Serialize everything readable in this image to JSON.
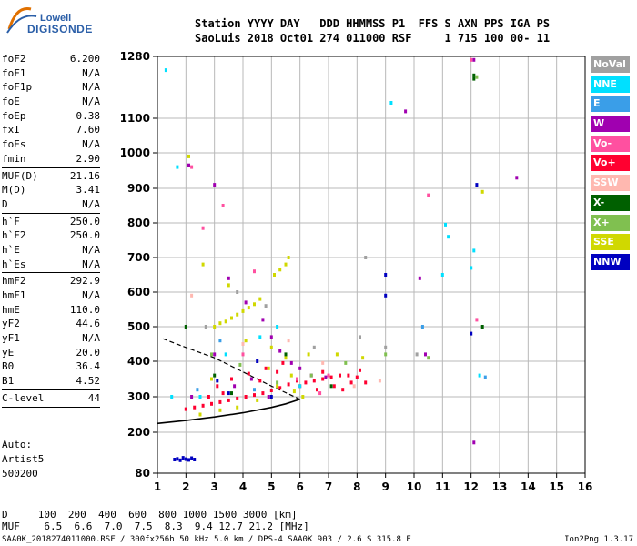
{
  "logo": {
    "line1": "Lowell",
    "line2": "DIGISONDE"
  },
  "header": {
    "line1": "Station YYYY DAY   DDD HHMMSS P1  FFS S AXN PPS IGA PS",
    "line2": "SaoLuis 2018 Oct01 274 011000 RSF     1 715 100 00- 11"
  },
  "params": [
    {
      "name": "foF2",
      "value": "6.200"
    },
    {
      "name": "foF1",
      "value": "N/A"
    },
    {
      "name": "foF1p",
      "value": "N/A"
    },
    {
      "name": "foE",
      "value": "N/A"
    },
    {
      "name": "foEp",
      "value": "0.38"
    },
    {
      "name": "fxI",
      "value": "7.60"
    },
    {
      "name": "foEs",
      "value": "N/A"
    },
    {
      "name": "fmin",
      "value": "2.90",
      "sep_after": true
    },
    {
      "name": "MUF(D)",
      "value": "21.16"
    },
    {
      "name": "M(D)",
      "value": "3.41"
    },
    {
      "name": "D",
      "value": "N/A",
      "sep_after": true
    },
    {
      "name": "h`F",
      "value": "250.0"
    },
    {
      "name": "h`F2",
      "value": "250.0"
    },
    {
      "name": "h`E",
      "value": "N/A"
    },
    {
      "name": "h`Es",
      "value": "N/A",
      "sep_after": true
    },
    {
      "name": "hmF2",
      "value": "292.9"
    },
    {
      "name": "hmF1",
      "value": "N/A"
    },
    {
      "name": "hmE",
      "value": "110.0"
    },
    {
      "name": "yF2",
      "value": "44.6"
    },
    {
      "name": "yF1",
      "value": "N/A"
    },
    {
      "name": "yE",
      "value": "20.0"
    },
    {
      "name": "B0",
      "value": "36.4"
    },
    {
      "name": "B1",
      "value": "4.52",
      "sep_after": true
    },
    {
      "name": "C-level",
      "value": "44",
      "sep_after": true
    }
  ],
  "auto": {
    "line1": "Auto:",
    "line2": "Artist5",
    "line3": "500200"
  },
  "legend": [
    {
      "label": "NoVal",
      "bg": "#a0a0a0",
      "fg": "#ffffff"
    },
    {
      "label": "NNE",
      "bg": "#00e0ff",
      "fg": "#ffffff"
    },
    {
      "label": "E",
      "bg": "#3a9ee8",
      "fg": "#ffffff"
    },
    {
      "label": "W",
      "bg": "#a000b0",
      "fg": "#ffffff"
    },
    {
      "label": "Vo-",
      "bg": "#ff50a0",
      "fg": "#ffffff"
    },
    {
      "label": "Vo+",
      "bg": "#ff0030",
      "fg": "#ffffff"
    },
    {
      "label": "SSW",
      "bg": "#ffb8b0",
      "fg": "#ffffff"
    },
    {
      "label": "X-",
      "bg": "#006000",
      "fg": "#ffffff"
    },
    {
      "label": "X+",
      "bg": "#80c050",
      "fg": "#ffffff"
    },
    {
      "label": "SSE",
      "bg": "#d0d800",
      "fg": "#ffffff"
    },
    {
      "label": "NNW",
      "bg": "#0000c0",
      "fg": "#ffffff"
    }
  ],
  "footer": {
    "freq_d": "D     100  200  400  600  800 1000 1500 3000 [km]",
    "freq_m": "MUF    6.5  6.6  7.0  7.5  8.3  9.4 12.7 21.2 [MHz]",
    "source": "SAA0K_2018274011000.RSF / 300fx256h 50 kHz 5.0 km / DPS-4 SAA0K 903 / 2.6 S 315.8 E",
    "version": "Ion2Png 1.3.17"
  },
  "chart_data": {
    "type": "scatter",
    "title": "",
    "xlabel": "",
    "ylabel": "",
    "xlim": [
      1,
      16
    ],
    "ylim": [
      80,
      1280
    ],
    "x_ticks": [
      1,
      2,
      3,
      4,
      5,
      6,
      7,
      8,
      9,
      10,
      11,
      12,
      13,
      14,
      15,
      16
    ],
    "y_ticks": [
      80,
      200,
      300,
      400,
      500,
      600,
      700,
      800,
      900,
      1000,
      1100,
      1280
    ],
    "grid": true,
    "legend_position": "right",
    "series": [
      {
        "name": "Vo+",
        "color": "#ff0030",
        "points": [
          [
            2.0,
            265
          ],
          [
            2.3,
            270
          ],
          [
            2.6,
            275
          ],
          [
            2.9,
            280
          ],
          [
            3.2,
            285
          ],
          [
            3.5,
            290
          ],
          [
            3.8,
            295
          ],
          [
            4.1,
            300
          ],
          [
            4.4,
            305
          ],
          [
            4.7,
            310
          ],
          [
            5.0,
            318
          ],
          [
            5.3,
            325
          ],
          [
            5.6,
            335
          ],
          [
            5.9,
            345
          ],
          [
            6.2,
            340
          ],
          [
            6.5,
            345
          ],
          [
            6.8,
            350
          ],
          [
            7.1,
            355
          ],
          [
            7.4,
            360
          ],
          [
            7.7,
            360
          ],
          [
            8.0,
            355
          ],
          [
            8.3,
            340
          ],
          [
            6.0,
            330
          ],
          [
            6.6,
            320
          ],
          [
            7.2,
            330
          ],
          [
            7.8,
            340
          ],
          [
            3.1,
            330
          ],
          [
            3.6,
            350
          ],
          [
            4.2,
            365
          ],
          [
            4.8,
            380
          ],
          [
            5.4,
            395
          ],
          [
            2.8,
            300
          ],
          [
            3.3,
            310
          ],
          [
            4.6,
            345
          ],
          [
            5.2,
            370
          ],
          [
            6.8,
            370
          ],
          [
            8.1,
            375
          ],
          [
            7.5,
            320
          ]
        ]
      },
      {
        "name": "SSE",
        "color": "#d0d800",
        "points": [
          [
            3.0,
            500
          ],
          [
            3.2,
            510
          ],
          [
            3.4,
            515
          ],
          [
            3.6,
            525
          ],
          [
            3.8,
            535
          ],
          [
            4.0,
            545
          ],
          [
            4.2,
            555
          ],
          [
            4.4,
            565
          ],
          [
            4.6,
            580
          ],
          [
            5.1,
            650
          ],
          [
            5.3,
            665
          ],
          [
            5.5,
            680
          ],
          [
            5.6,
            700
          ],
          [
            2.5,
            250
          ],
          [
            3.2,
            262
          ],
          [
            3.8,
            270
          ],
          [
            4.5,
            290
          ],
          [
            5.2,
            330
          ],
          [
            5.7,
            360
          ],
          [
            4.9,
            380
          ],
          [
            5.5,
            410
          ],
          [
            2.9,
            350
          ],
          [
            6.3,
            420
          ],
          [
            7.3,
            420
          ],
          [
            8.2,
            410
          ],
          [
            12.4,
            890
          ],
          [
            2.1,
            990
          ],
          [
            2.6,
            680
          ],
          [
            3.5,
            620
          ],
          [
            4.1,
            460
          ],
          [
            5.0,
            440
          ],
          [
            5.8,
            315
          ],
          [
            6.1,
            300
          ]
        ]
      },
      {
        "name": "W",
        "color": "#a000b0",
        "points": [
          [
            2.1,
            965
          ],
          [
            3.0,
            910
          ],
          [
            3.5,
            640
          ],
          [
            4.1,
            570
          ],
          [
            4.7,
            520
          ],
          [
            5.0,
            470
          ],
          [
            5.3,
            430
          ],
          [
            5.7,
            395
          ],
          [
            6.0,
            380
          ],
          [
            6.4,
            360
          ],
          [
            3.7,
            330
          ],
          [
            4.3,
            350
          ],
          [
            3.0,
            420
          ],
          [
            9.7,
            1120
          ],
          [
            10.2,
            640
          ],
          [
            10.4,
            420
          ],
          [
            12.1,
            1270
          ],
          [
            12.1,
            170
          ],
          [
            13.6,
            930
          ],
          [
            2.2,
            300
          ],
          [
            4.9,
            300
          ],
          [
            6.9,
            355
          ]
        ]
      },
      {
        "name": "NNE",
        "color": "#00e0ff",
        "points": [
          [
            1.3,
            1240
          ],
          [
            1.5,
            300
          ],
          [
            1.7,
            960
          ],
          [
            2.5,
            300
          ],
          [
            3.4,
            420
          ],
          [
            4.6,
            470
          ],
          [
            5.2,
            500
          ],
          [
            9.2,
            1145
          ],
          [
            11.0,
            650
          ],
          [
            11.1,
            795
          ],
          [
            11.2,
            760
          ],
          [
            12.0,
            670
          ],
          [
            12.1,
            720
          ],
          [
            12.3,
            360
          ],
          [
            6.0,
            330
          ]
        ]
      },
      {
        "name": "NNW",
        "color": "#0000c0",
        "points": [
          [
            1.6,
            120
          ],
          [
            1.7,
            122
          ],
          [
            1.8,
            118
          ],
          [
            1.9,
            125
          ],
          [
            2.0,
            121
          ],
          [
            2.1,
            119
          ],
          [
            2.2,
            124
          ],
          [
            2.3,
            120
          ],
          [
            3.1,
            345
          ],
          [
            3.5,
            310
          ],
          [
            4.5,
            400
          ],
          [
            9.0,
            650
          ],
          [
            9.0,
            590
          ],
          [
            12.2,
            910
          ],
          [
            12.0,
            480
          ],
          [
            5.0,
            300
          ]
        ]
      },
      {
        "name": "Vo-",
        "color": "#ff50a0",
        "points": [
          [
            2.2,
            960
          ],
          [
            2.6,
            785
          ],
          [
            3.3,
            850
          ],
          [
            4.4,
            660
          ],
          [
            4.0,
            420
          ],
          [
            10.5,
            880
          ],
          [
            12.0,
            1270
          ],
          [
            12.2,
            520
          ],
          [
            5.9,
            350
          ],
          [
            6.7,
            310
          ],
          [
            7.0,
            360
          ]
        ]
      },
      {
        "name": "X-",
        "color": "#006000",
        "points": [
          [
            12.1,
            1215
          ],
          [
            12.1,
            1225
          ],
          [
            2.0,
            500
          ],
          [
            3.0,
            360
          ],
          [
            12.4,
            500
          ],
          [
            5.5,
            420
          ],
          [
            7.1,
            330
          ],
          [
            3.6,
            310
          ]
        ]
      },
      {
        "name": "X+",
        "color": "#80c050",
        "points": [
          [
            12.2,
            1220
          ],
          [
            2.9,
            420
          ],
          [
            3.9,
            390
          ],
          [
            5.2,
            340
          ],
          [
            6.4,
            360
          ],
          [
            7.6,
            395
          ],
          [
            9.0,
            420
          ],
          [
            10.5,
            410
          ]
        ]
      },
      {
        "name": "NoVal",
        "color": "#a0a0a0",
        "points": [
          [
            8.3,
            700
          ],
          [
            9.0,
            440
          ],
          [
            3.8,
            600
          ],
          [
            4.8,
            560
          ],
          [
            6.5,
            440
          ],
          [
            8.1,
            470
          ],
          [
            10.1,
            420
          ],
          [
            2.7,
            500
          ]
        ]
      },
      {
        "name": "SSW",
        "color": "#ffb8b0",
        "points": [
          [
            2.2,
            590
          ],
          [
            4.0,
            450
          ],
          [
            5.6,
            460
          ],
          [
            6.8,
            395
          ],
          [
            7.9,
            330
          ],
          [
            8.8,
            345
          ]
        ]
      },
      {
        "name": "E",
        "color": "#3a9ee8",
        "points": [
          [
            12.5,
            355
          ],
          [
            10.3,
            500
          ],
          [
            3.2,
            460
          ],
          [
            4.4,
            320
          ],
          [
            2.4,
            320
          ]
        ]
      }
    ],
    "curves": [
      {
        "name": "profile",
        "color": "#000000",
        "points": [
          [
            1,
            225
          ],
          [
            2,
            233
          ],
          [
            3,
            243
          ],
          [
            4,
            255
          ],
          [
            5,
            270
          ],
          [
            5.5,
            280
          ],
          [
            6.0,
            292.9
          ]
        ]
      },
      {
        "name": "profile-upper",
        "color": "#000000",
        "points": [
          [
            6.0,
            292.9
          ],
          [
            5.0,
            330
          ],
          [
            4.0,
            370
          ],
          [
            3.0,
            410
          ],
          [
            2.0,
            440
          ],
          [
            1.2,
            465
          ]
        ]
      }
    ]
  }
}
